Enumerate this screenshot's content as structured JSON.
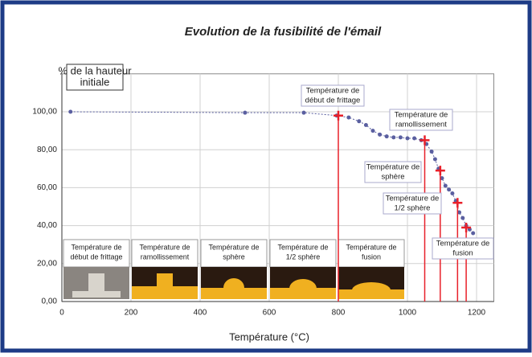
{
  "chart_data": {
    "type": "scatter-line",
    "title": "Evolution de la fusibilité de l'émail",
    "ylabel": [
      "% de la hauteur",
      "initiale"
    ],
    "xlabel": "Température (°C)",
    "xlim": [
      0,
      1250
    ],
    "ylim": [
      0,
      120
    ],
    "xticks": [
      0,
      200,
      400,
      600,
      800,
      1000,
      1200
    ],
    "yticks": [
      {
        "value": 0,
        "label": "0,00"
      },
      {
        "value": 20,
        "label": "20,00"
      },
      {
        "value": 40,
        "label": "40,00"
      },
      {
        "value": 60,
        "label": "60,00"
      },
      {
        "value": 80,
        "label": "80,00"
      },
      {
        "value": 100,
        "label": "100,00"
      }
    ],
    "grid": true,
    "x": [
      25,
      530,
      700,
      795,
      830,
      860,
      880,
      900,
      920,
      940,
      960,
      980,
      1000,
      1020,
      1040,
      1055,
      1070,
      1080,
      1090,
      1100,
      1110,
      1120,
      1130,
      1140,
      1150,
      1160,
      1170,
      1180,
      1190
    ],
    "series": [
      {
        "color": "#5a5fa0",
        "values": [
          100,
          99.5,
          99.5,
          98,
          97,
          95,
          93,
          90,
          88,
          87,
          86.5,
          86.5,
          86,
          86,
          85,
          83,
          79,
          75,
          70,
          65,
          61,
          59,
          57,
          53,
          47,
          44,
          40,
          38,
          36
        ]
      }
    ],
    "annotation_color": "#e8202a",
    "annotations": [
      {
        "x": 800,
        "y": 98,
        "text": [
          "Température de",
          "début de frittage"
        ]
      },
      {
        "x": 1050,
        "y": 85,
        "text": [
          "Température de",
          "ramollissement"
        ]
      },
      {
        "x": 1095,
        "y": 69,
        "text": [
          "Température de",
          "sphère"
        ]
      },
      {
        "x": 1145,
        "y": 52,
        "text": [
          "Température de",
          "1/2 sphère"
        ]
      },
      {
        "x": 1170,
        "y": 39,
        "text": [
          "Température de",
          "fusion"
        ]
      }
    ],
    "photo_labels": [
      [
        "Température de",
        "début de frittage"
      ],
      [
        "Température de",
        "ramollissement"
      ],
      [
        "Température de",
        "sphère"
      ],
      [
        "Température de",
        "1/2 sphère"
      ],
      [
        "Température de",
        "fusion"
      ]
    ]
  }
}
